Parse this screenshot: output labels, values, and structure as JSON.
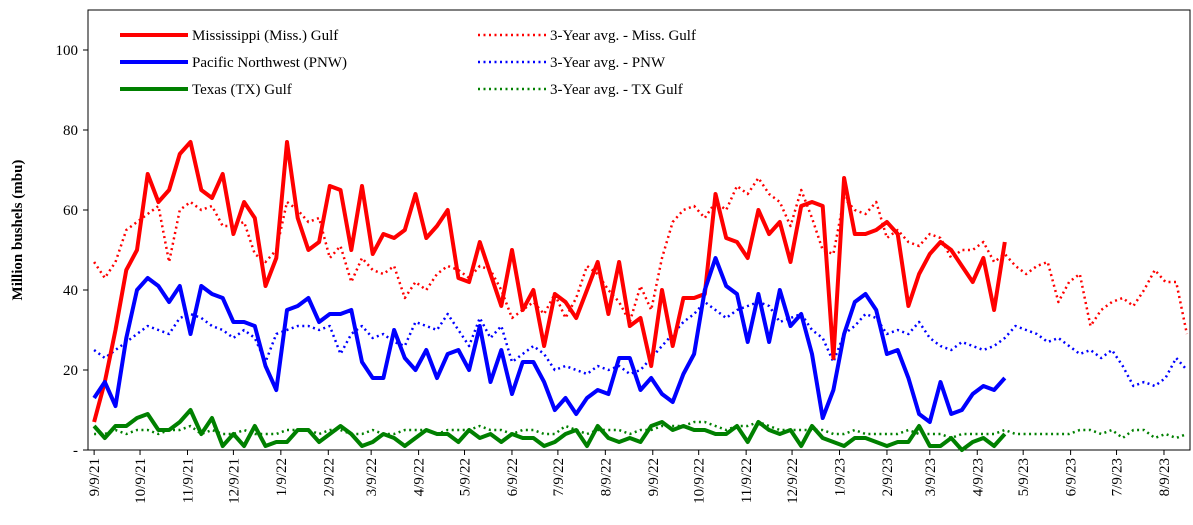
{
  "chart_data": {
    "type": "line",
    "y_label": "Million bushels (mbu)",
    "legend": "upper left",
    "grid": false,
    "xlim": [
      "2021-09-05",
      "2023-08-26"
    ],
    "ylim": [
      0,
      110
    ],
    "yticks": [
      {
        "value": 0,
        "label": "-"
      },
      20,
      40,
      60,
      80,
      100
    ],
    "xticks": [
      {
        "value": "2021-09-09",
        "label": "9/9/21"
      },
      {
        "value": "2021-10-09",
        "label": "10/9/21"
      },
      {
        "value": "2021-11-09",
        "label": "11/9/21"
      },
      {
        "value": "2021-12-09",
        "label": "12/9/21"
      },
      {
        "value": "2022-01-09",
        "label": "1/9/22"
      },
      {
        "value": "2022-02-09",
        "label": "2/9/22"
      },
      {
        "value": "2022-03-09",
        "label": "3/9/22"
      },
      {
        "value": "2022-04-09",
        "label": "4/9/22"
      },
      {
        "value": "2022-05-09",
        "label": "5/9/22"
      },
      {
        "value": "2022-06-09",
        "label": "6/9/22"
      },
      {
        "value": "2022-07-09",
        "label": "7/9/22"
      },
      {
        "value": "2022-08-09",
        "label": "8/9/22"
      },
      {
        "value": "2022-09-09",
        "label": "9/9/22"
      },
      {
        "value": "2022-10-09",
        "label": "10/9/22"
      },
      {
        "value": "2022-11-09",
        "label": "11/9/22"
      },
      {
        "value": "2022-12-09",
        "label": "12/9/22"
      },
      {
        "value": "2023-01-09",
        "label": "1/9/23"
      },
      {
        "value": "2023-02-09",
        "label": "2/9/23"
      },
      {
        "value": "2023-03-09",
        "label": "3/9/23"
      },
      {
        "value": "2023-04-09",
        "label": "4/9/23"
      },
      {
        "value": "2023-05-09",
        "label": "5/9/23"
      },
      {
        "value": "2023-06-09",
        "label": "6/9/23"
      },
      {
        "value": "2023-07-09",
        "label": "7/9/23"
      },
      {
        "value": "2023-08-09",
        "label": "8/9/23"
      }
    ],
    "x": [
      "2021-09-09",
      "2021-09-16",
      "2021-09-23",
      "2021-09-30",
      "2021-10-07",
      "2021-10-14",
      "2021-10-21",
      "2021-10-28",
      "2021-11-04",
      "2021-11-11",
      "2021-11-18",
      "2021-11-25",
      "2021-12-02",
      "2021-12-09",
      "2021-12-16",
      "2021-12-23",
      "2021-12-30",
      "2022-01-06",
      "2022-01-13",
      "2022-01-20",
      "2022-01-27",
      "2022-02-03",
      "2022-02-10",
      "2022-02-17",
      "2022-02-24",
      "2022-03-03",
      "2022-03-10",
      "2022-03-17",
      "2022-03-24",
      "2022-03-31",
      "2022-04-07",
      "2022-04-14",
      "2022-04-21",
      "2022-04-28",
      "2022-05-05",
      "2022-05-12",
      "2022-05-19",
      "2022-05-26",
      "2022-06-02",
      "2022-06-09",
      "2022-06-16",
      "2022-06-23",
      "2022-06-30",
      "2022-07-07",
      "2022-07-14",
      "2022-07-21",
      "2022-07-28",
      "2022-08-04",
      "2022-08-11",
      "2022-08-18",
      "2022-08-25",
      "2022-09-01",
      "2022-09-08",
      "2022-09-15",
      "2022-09-22",
      "2022-09-29",
      "2022-10-06",
      "2022-10-13",
      "2022-10-20",
      "2022-10-27",
      "2022-11-03",
      "2022-11-10",
      "2022-11-17",
      "2022-11-24",
      "2022-12-01",
      "2022-12-08",
      "2022-12-15",
      "2022-12-22",
      "2022-12-29",
      "2023-01-05",
      "2023-01-12",
      "2023-01-19",
      "2023-01-26",
      "2023-02-02",
      "2023-02-09",
      "2023-02-16",
      "2023-02-23",
      "2023-03-02",
      "2023-03-09",
      "2023-03-16",
      "2023-03-23",
      "2023-03-30",
      "2023-04-06",
      "2023-04-13",
      "2023-04-20",
      "2023-04-27",
      "2023-05-04",
      "2023-05-11",
      "2023-05-18",
      "2023-05-25",
      "2023-06-01",
      "2023-06-08",
      "2023-06-15",
      "2023-06-22",
      "2023-06-29",
      "2023-07-06",
      "2023-07-13",
      "2023-07-20",
      "2023-07-27",
      "2023-08-03",
      "2023-08-10",
      "2023-08-17",
      "2023-08-24"
    ],
    "series": [
      {
        "name": "Mississippi (Miss.) Gulf",
        "color": "#ff0000",
        "dashed": false,
        "values": [
          7,
          17,
          30,
          45,
          50,
          69,
          62,
          65,
          74,
          77,
          65,
          63,
          69,
          54,
          62,
          58,
          41,
          48,
          77,
          58,
          50,
          52,
          66,
          65,
          50,
          66,
          49,
          54,
          53,
          55,
          64,
          53,
          56,
          60,
          43,
          42,
          52,
          44,
          36,
          50,
          35,
          40,
          26,
          39,
          37,
          33,
          40,
          47,
          34,
          47,
          31,
          33,
          21,
          40,
          26,
          38,
          38,
          39,
          64,
          53,
          52,
          48,
          60,
          54,
          57,
          47,
          61,
          62,
          61,
          23,
          68,
          54,
          54,
          55,
          57,
          54,
          36,
          44,
          49,
          52,
          50,
          46,
          42,
          48,
          35,
          52,
          null,
          null,
          null,
          null,
          null,
          null,
          null,
          null,
          null,
          null,
          null,
          null,
          null,
          null,
          null,
          null,
          null
        ]
      },
      {
        "name": "Pacific Northwest (PNW)",
        "color": "#0000ff",
        "dashed": false,
        "values": [
          13,
          17,
          11,
          28,
          40,
          43,
          41,
          37,
          41,
          29,
          41,
          39,
          38,
          32,
          32,
          31,
          21,
          15,
          35,
          36,
          38,
          32,
          34,
          34,
          35,
          22,
          18,
          18,
          30,
          23,
          20,
          25,
          18,
          24,
          25,
          20,
          31,
          17,
          25,
          14,
          22,
          22,
          17,
          10,
          13,
          9,
          13,
          15,
          14,
          23,
          23,
          15,
          18,
          14,
          12,
          19,
          24,
          40,
          48,
          41,
          39,
          27,
          39,
          27,
          40,
          31,
          34,
          24,
          8,
          15,
          29,
          37,
          39,
          35,
          24,
          25,
          18,
          9,
          7,
          17,
          9,
          10,
          14,
          16,
          15,
          18,
          null,
          null,
          null,
          null,
          null,
          null,
          null,
          null,
          null,
          null,
          null,
          null,
          null,
          null,
          null,
          null,
          null
        ]
      },
      {
        "name": "Texas (TX) Gulf",
        "color": "#008000",
        "dashed": false,
        "values": [
          6,
          3,
          6,
          6,
          8,
          9,
          5,
          5,
          7,
          10,
          4,
          8,
          1,
          4,
          1,
          6,
          1,
          2,
          2,
          5,
          5,
          2,
          4,
          6,
          4,
          1,
          2,
          4,
          3,
          1,
          3,
          5,
          4,
          4,
          2,
          5,
          3,
          4,
          2,
          4,
          3,
          3,
          1,
          2,
          4,
          5,
          1,
          6,
          3,
          2,
          3,
          2,
          6,
          7,
          5,
          6,
          5,
          5,
          4,
          4,
          6,
          2,
          7,
          5,
          4,
          5,
          1,
          6,
          3,
          2,
          1,
          3,
          3,
          2,
          1,
          2,
          2,
          6,
          1,
          1,
          3,
          0,
          2,
          3,
          1,
          4,
          null,
          null,
          null,
          null,
          null,
          null,
          null,
          null,
          null,
          null,
          null,
          null,
          null,
          null,
          null,
          null,
          null
        ]
      },
      {
        "name": "3-Year avg. - Miss. Gulf",
        "color": "#ff0000",
        "dashed": true,
        "values": [
          47,
          43,
          47,
          55,
          57,
          59,
          61,
          47,
          60,
          62,
          60,
          61,
          56,
          56,
          57,
          49,
          47,
          50,
          62,
          60,
          57,
          58,
          48,
          51,
          42,
          48,
          45,
          44,
          46,
          38,
          42,
          40,
          44,
          46,
          45,
          43,
          46,
          45,
          40,
          33,
          35,
          37,
          34,
          39,
          33,
          38,
          46,
          44,
          40,
          37,
          32,
          41,
          35,
          48,
          57,
          60,
          61,
          58,
          62,
          60,
          66,
          64,
          68,
          64,
          62,
          56,
          65,
          58,
          50,
          49,
          63,
          60,
          59,
          62,
          53,
          55,
          52,
          51,
          54,
          53,
          48,
          50,
          50,
          52,
          47,
          49,
          46,
          44,
          46,
          47,
          37,
          42,
          44,
          31,
          35,
          37,
          38,
          36,
          40,
          45,
          42,
          42,
          29
        ]
      },
      {
        "name": "3-Year avg. - PNW",
        "color": "#0000ff",
        "dashed": true,
        "values": [
          25,
          23,
          25,
          27,
          29,
          31,
          30,
          29,
          33,
          34,
          33,
          31,
          30,
          28,
          30,
          28,
          22,
          29,
          30,
          31,
          31,
          30,
          31,
          24,
          29,
          31,
          28,
          29,
          27,
          26,
          32,
          31,
          30,
          34,
          30,
          26,
          33,
          28,
          31,
          22,
          24,
          26,
          24,
          20,
          21,
          20,
          19,
          21,
          20,
          21,
          19,
          20,
          23,
          26,
          29,
          32,
          34,
          37,
          35,
          33,
          35,
          36,
          37,
          36,
          32,
          33,
          34,
          30,
          28,
          22,
          29,
          31,
          34,
          33,
          29,
          30,
          29,
          32,
          28,
          26,
          25,
          27,
          26,
          25,
          26,
          28,
          31,
          30,
          29,
          27,
          28,
          26,
          24,
          25,
          23,
          25,
          21,
          16,
          17,
          16,
          18,
          23,
          20
        ]
      },
      {
        "name": "3-Year avg. - TX Gulf",
        "color": "#008000",
        "dashed": true,
        "values": [
          4,
          4,
          5,
          4,
          5,
          5,
          4,
          5,
          5,
          6,
          4,
          5,
          4,
          4,
          5,
          4,
          4,
          4,
          5,
          5,
          5,
          4,
          5,
          5,
          4,
          4,
          5,
          4,
          4,
          5,
          5,
          5,
          4,
          5,
          5,
          5,
          6,
          5,
          5,
          4,
          5,
          5,
          4,
          4,
          6,
          5,
          4,
          5,
          5,
          5,
          4,
          5,
          5,
          6,
          6,
          6,
          7,
          7,
          6,
          5,
          6,
          6,
          7,
          6,
          5,
          5,
          5,
          5,
          5,
          4,
          4,
          5,
          4,
          4,
          4,
          4,
          5,
          4,
          4,
          4,
          3,
          4,
          4,
          4,
          4,
          5,
          4,
          4,
          4,
          4,
          4,
          4,
          5,
          5,
          4,
          5,
          3,
          5,
          5,
          3,
          4,
          3,
          4
        ]
      }
    ]
  }
}
